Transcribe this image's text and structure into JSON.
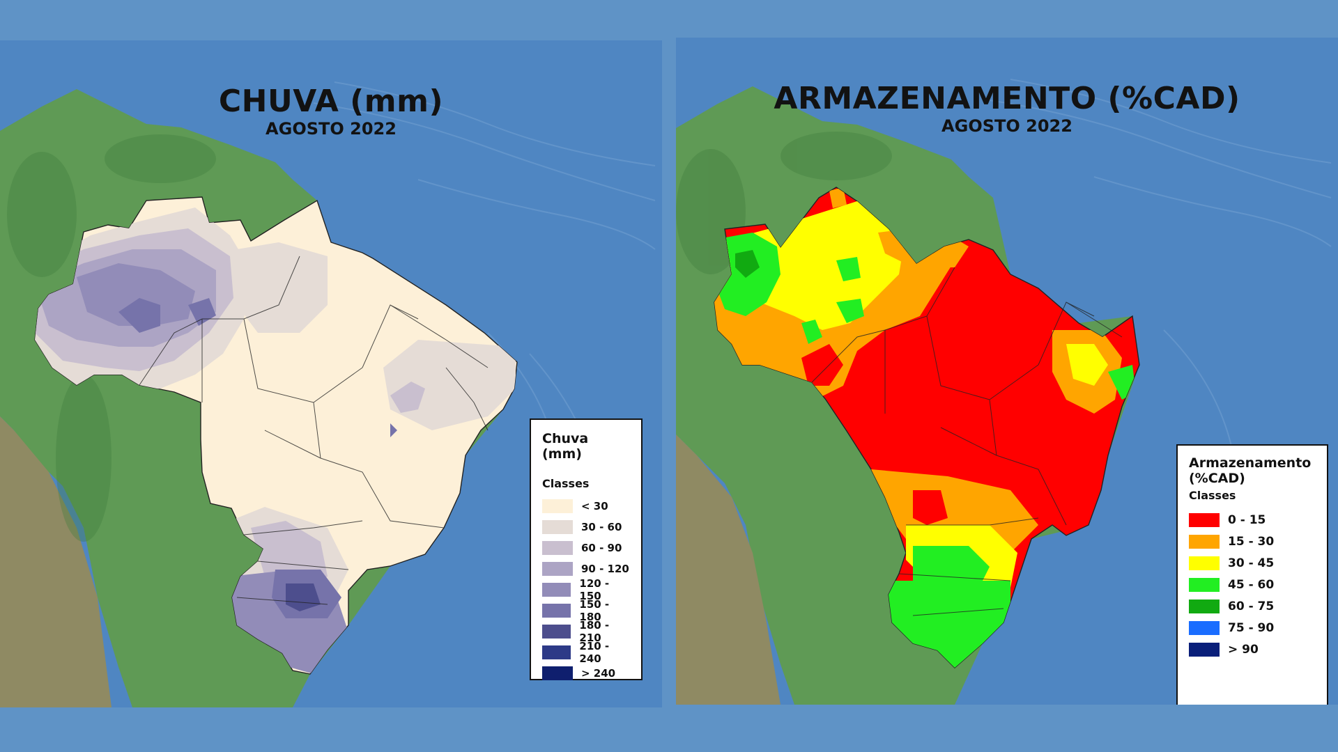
{
  "left_map": {
    "title": "CHUVA (mm)",
    "subtitle": "AGOSTO 2022",
    "legend": {
      "title": "Chuva (mm)",
      "classes_label": "Classes",
      "items": [
        {
          "label": "< 30",
          "color": "#fdf0d8"
        },
        {
          "label": "30 - 60",
          "color": "#e5dcd6"
        },
        {
          "label": "60 - 90",
          "color": "#c9bfcf"
        },
        {
          "label": "90 - 120",
          "color": "#aca4c4"
        },
        {
          "label": "120 - 150",
          "color": "#928cb8"
        },
        {
          "label": "150 - 180",
          "color": "#7673aa"
        },
        {
          "label": "180 - 210",
          "color": "#4d4e8d"
        },
        {
          "label": "210 - 240",
          "color": "#2d3a87"
        },
        {
          "label": "> 240",
          "color": "#0f1f6e"
        }
      ]
    }
  },
  "right_map": {
    "title": "ARMAZENAMENTO (%CAD)",
    "subtitle": "AGOSTO 2022",
    "legend": {
      "title_line1": "Armazenamento",
      "title_line2": "(%CAD)",
      "classes_label": "Classes",
      "items": [
        {
          "label": "0 - 15",
          "color": "#ff0000"
        },
        {
          "label": "15 - 30",
          "color": "#ffa500"
        },
        {
          "label": "30 - 45",
          "color": "#ffff00"
        },
        {
          "label": "45 - 60",
          "color": "#22ee22"
        },
        {
          "label": "60 - 75",
          "color": "#11aa11"
        },
        {
          "label": "75 - 90",
          "color": "#1a6dff"
        },
        {
          "label": "> 90",
          "color": "#0a1f7a"
        }
      ]
    }
  },
  "colors": {
    "ocean": "#4f86c2",
    "land": "#5f9a55",
    "background": "#5f93c6"
  }
}
